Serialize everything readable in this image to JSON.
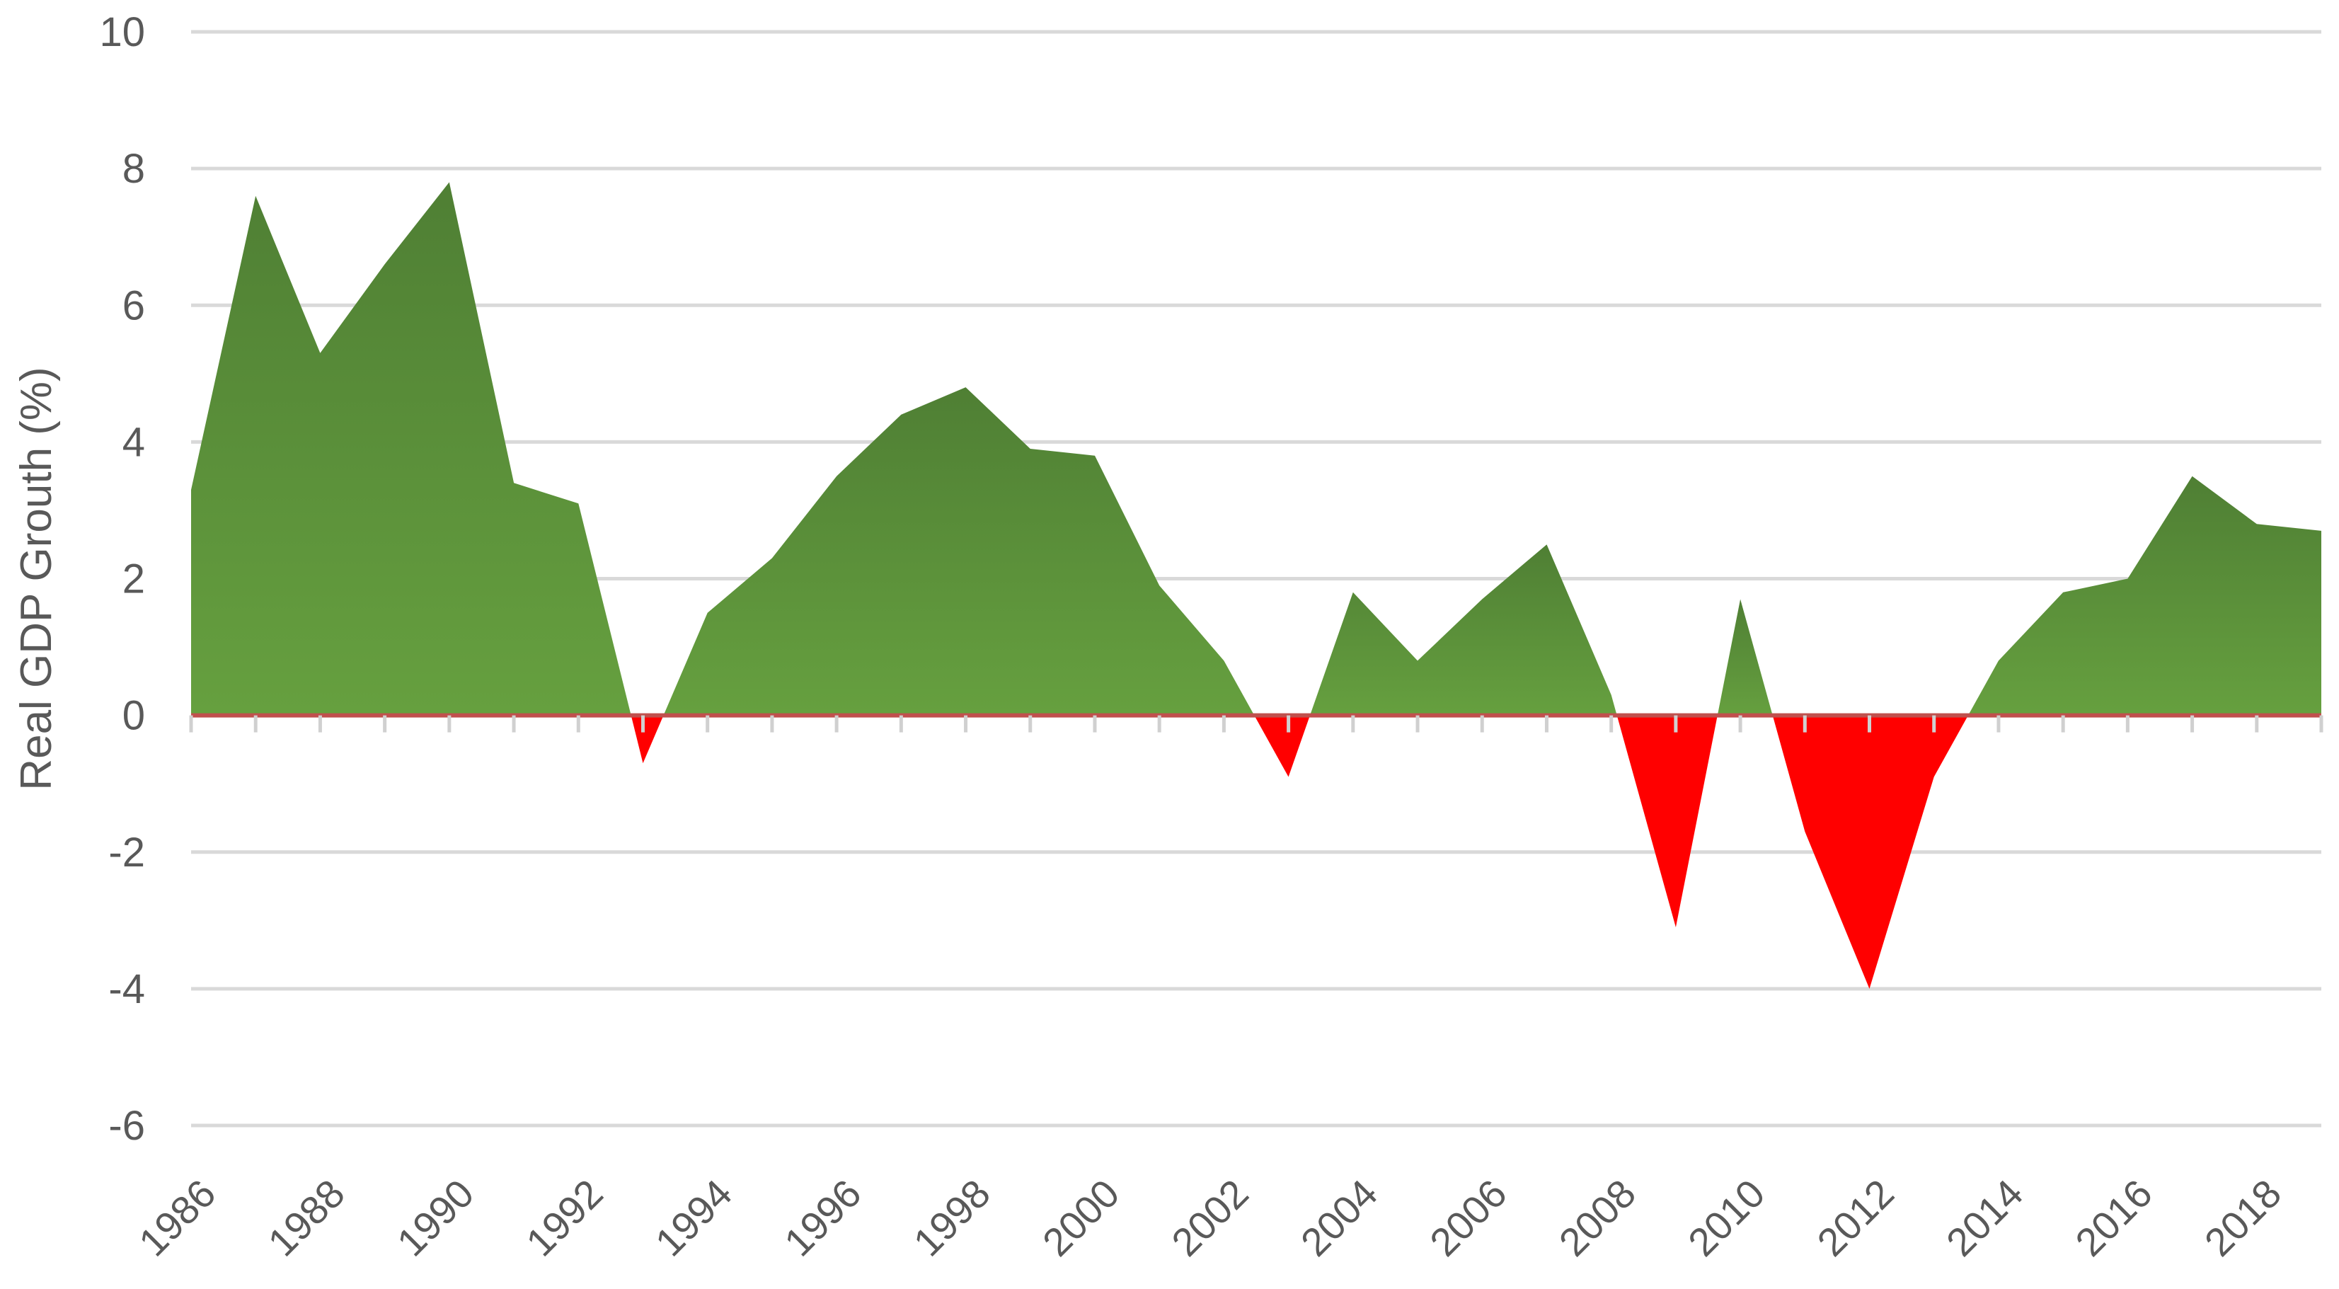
{
  "chart_data": {
    "type": "area",
    "ylabel": "Real GDP Grouth (%)",
    "xlabel": "",
    "title": "",
    "ylim": [
      -6,
      10
    ],
    "yticks": [
      -6,
      -4,
      -2,
      0,
      2,
      4,
      6,
      8,
      10
    ],
    "xlim": [
      1986,
      2019
    ],
    "xtick_labels": [
      "1986",
      "1988",
      "1990",
      "1992",
      "1994",
      "1996",
      "1998",
      "2000",
      "2002",
      "2004",
      "2006",
      "2008",
      "2010",
      "2012",
      "2014",
      "2016",
      "2018"
    ],
    "grid": true,
    "legend": "none",
    "x": [
      1986,
      1987,
      1988,
      1989,
      1990,
      1991,
      1992,
      1993,
      1994,
      1995,
      1996,
      1997,
      1998,
      1999,
      2000,
      2001,
      2002,
      2003,
      2004,
      2005,
      2006,
      2007,
      2008,
      2009,
      2010,
      2011,
      2012,
      2013,
      2014,
      2015,
      2016,
      2017,
      2018,
      2019
    ],
    "values": [
      3.3,
      7.6,
      5.3,
      6.6,
      7.8,
      3.4,
      3.1,
      -0.7,
      1.5,
      2.3,
      3.5,
      4.4,
      4.8,
      3.9,
      3.8,
      1.9,
      0.8,
      -0.9,
      1.8,
      0.8,
      1.7,
      2.5,
      0.3,
      -3.1,
      1.7,
      -1.7,
      -4.0,
      -0.9,
      0.8,
      1.8,
      2.0,
      3.5,
      2.8,
      2.7
    ],
    "colors": {
      "positive_top": "#4f7f34",
      "positive_bottom": "#66a03f",
      "negative": "#ff0000",
      "zero_line": "#c0504d",
      "grid": "#d9d9d9",
      "text": "#595959"
    }
  }
}
